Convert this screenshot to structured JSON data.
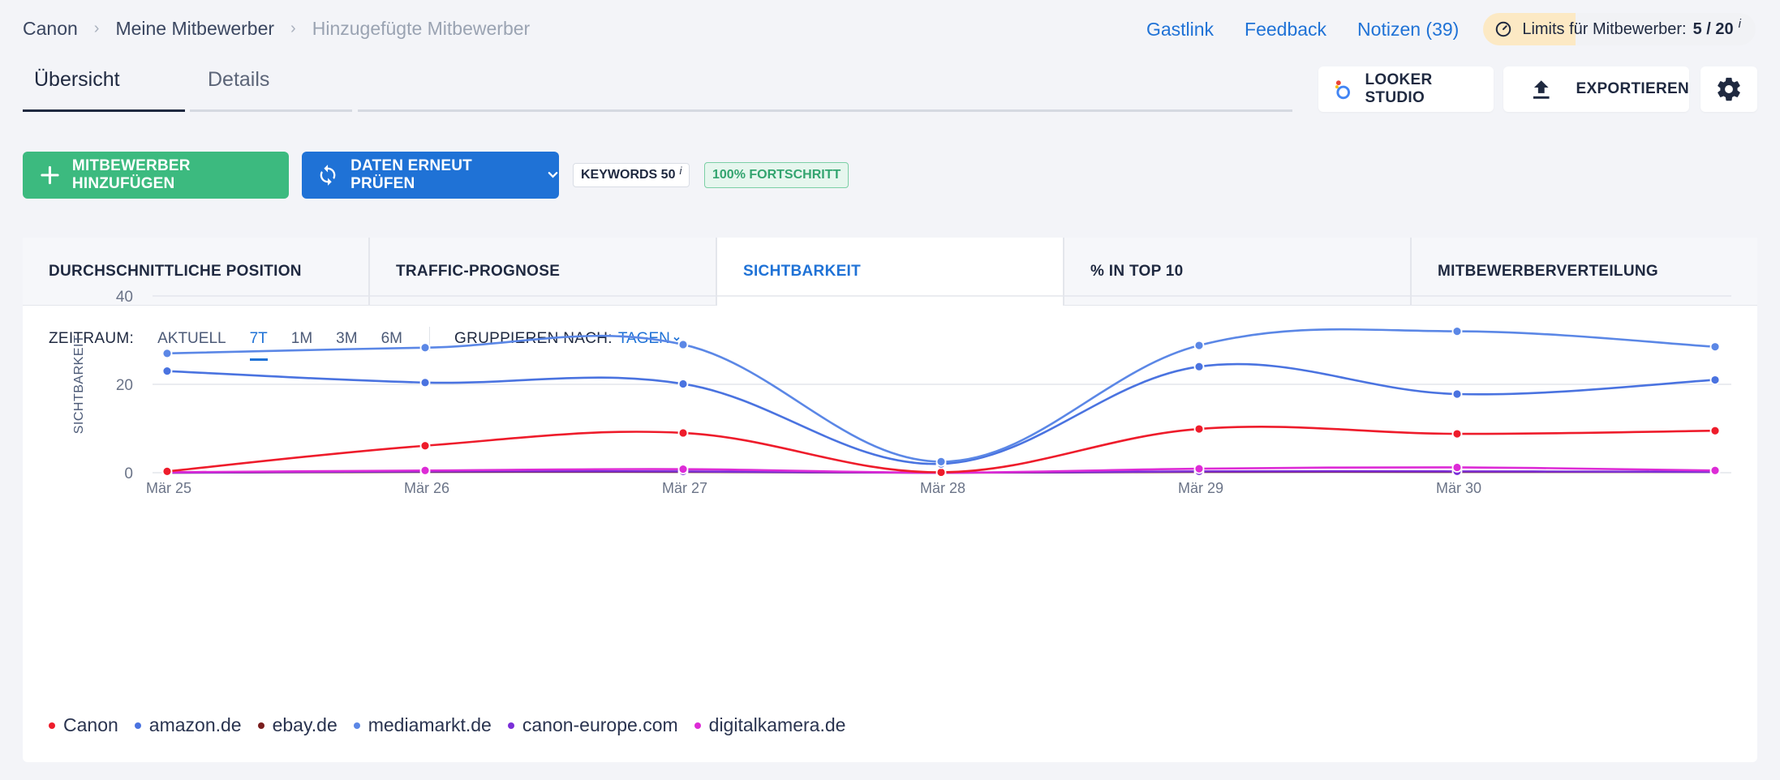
{
  "breadcrumb": [
    "Canon",
    "Meine Mitbewerber",
    "Hinzugefügte Mitbewerber"
  ],
  "toplinks": {
    "guest": "Gastlink",
    "feedback": "Feedback",
    "notes": "Notizen (39)"
  },
  "limits": {
    "label": "Limits für Mitbewerber:",
    "value": "5 / 20",
    "info": "i"
  },
  "tabs": {
    "overview": "Übersicht",
    "details": "Details"
  },
  "actions": {
    "looker": "LOOKER STUDIO",
    "export": "EXPORTIEREN"
  },
  "buttons": {
    "add": "MITBEWERBER HINZUFÜGEN",
    "recheck": "DATEN ERNEUT PRÜFEN"
  },
  "badges": {
    "keywords": "KEYWORDS 50",
    "keywords_info": "i",
    "progress": "100% FORTSCHRITT"
  },
  "metric_tabs": [
    "DURCHSCHNITTLICHE POSITION",
    "TRAFFIC-PROGNOSE",
    "SICHTBARKEIT",
    "% IN TOP 10",
    "MITBEWERBERVERTEILUNG"
  ],
  "filters": {
    "period_label": "ZEITRAUM:",
    "periods": [
      "AKTUELL",
      "7T",
      "1M",
      "3M",
      "6M"
    ],
    "group_label": "GRUPPIEREN NACH:",
    "group_value": "TAGEN"
  },
  "colors": {
    "accent": "#1f72d6",
    "green": "#3cba7f"
  },
  "chart_data": {
    "type": "line",
    "ylabel": "SICHTBARKEIT",
    "ylim": [
      0,
      40
    ],
    "yticks": [
      "0",
      "20",
      "40"
    ],
    "categories": [
      "Mär 25",
      "Mär 26",
      "Mär 27",
      "Mär 28",
      "Mär 29",
      "Mär 30",
      ""
    ],
    "series": [
      {
        "name": "mediamarkt.de",
        "color": "#5b87e6",
        "values": [
          27,
          28.3,
          29,
          2.5,
          28.8,
          32,
          28.5
        ]
      },
      {
        "name": "amazon.de",
        "color": "#4a73e0",
        "values": [
          23,
          20.4,
          20.1,
          2,
          24,
          17.8,
          21
        ]
      },
      {
        "name": "Canon",
        "color": "#ee1c2b",
        "values": [
          0.3,
          6.1,
          9,
          0.1,
          9.9,
          8.8,
          9.5
        ]
      },
      {
        "name": "ebay.de",
        "color": "#7a1e1e",
        "values": [
          0,
          0.2,
          0.2,
          0,
          0.2,
          0.2,
          0.2
        ]
      },
      {
        "name": "canon-europe.com",
        "color": "#7b2fd8",
        "values": [
          0,
          0.3,
          0.3,
          0,
          0.3,
          0.3,
          0.2
        ]
      },
      {
        "name": "digitalkamera.de",
        "color": "#dd2bd6",
        "values": [
          0.1,
          0.5,
          0.8,
          0,
          0.9,
          1.2,
          0.5
        ]
      }
    ],
    "legend": [
      {
        "name": "Canon",
        "color": "#ee1c2b"
      },
      {
        "name": "amazon.de",
        "color": "#4a73e0"
      },
      {
        "name": "ebay.de",
        "color": "#7a1e1e"
      },
      {
        "name": "mediamarkt.de",
        "color": "#5b87e6"
      },
      {
        "name": "canon-europe.com",
        "color": "#7b2fd8"
      },
      {
        "name": "digitalkamera.de",
        "color": "#dd2bd6"
      }
    ],
    "grid": true,
    "legend_position": "bottom-left"
  }
}
